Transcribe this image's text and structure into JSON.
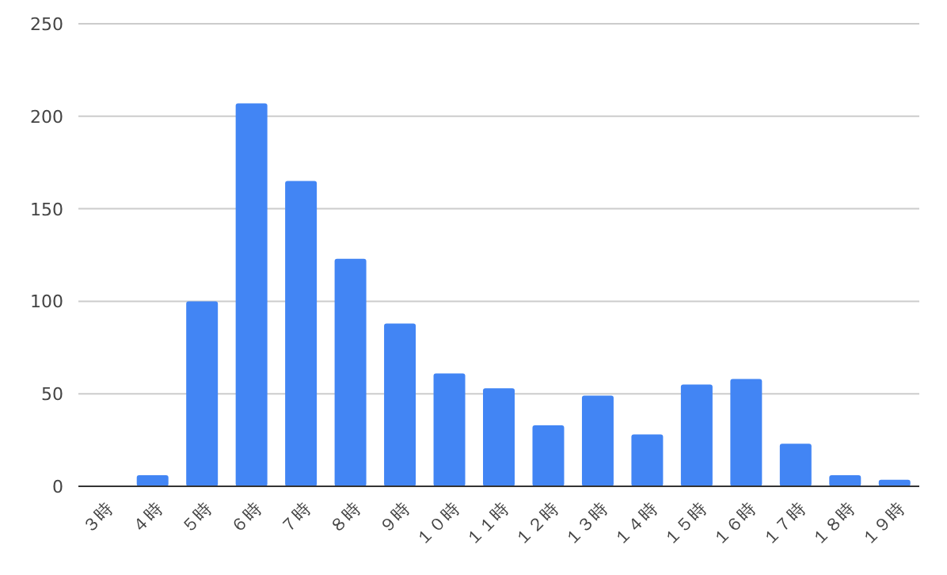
{
  "chart_data": {
    "type": "bar",
    "categories": [
      "３時",
      "４時",
      "５時",
      "６時",
      "７時",
      "８時",
      "９時",
      "１０時",
      "１１時",
      "１２時",
      "１３時",
      "１４時",
      "１５時",
      "１６時",
      "１７時",
      "１８時",
      "１９時"
    ],
    "values": [
      0,
      6,
      100,
      207,
      165,
      123,
      88,
      61,
      53,
      33,
      49,
      28,
      55,
      58,
      23,
      6,
      3.5
    ],
    "color": "#4285f4",
    "ylim": [
      0,
      250
    ],
    "yticks": [
      0,
      50,
      100,
      150,
      200,
      250
    ],
    "grid": "y"
  }
}
